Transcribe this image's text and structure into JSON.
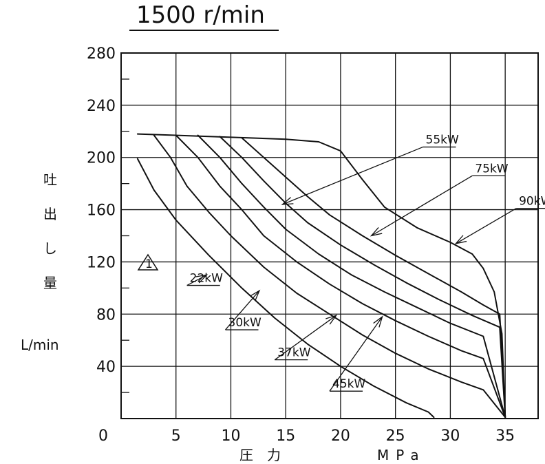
{
  "chart_data": {
    "type": "line",
    "title": "1500 r/min",
    "xlabel": "圧　力",
    "xunit": "MPa",
    "ylabel": "吐出し量",
    "yunit": "L/min",
    "xlim": [
      0,
      38
    ],
    "ylim": [
      0,
      280
    ],
    "grid": true,
    "x_ticks": [
      0,
      5,
      10,
      15,
      20,
      25,
      30,
      35
    ],
    "y_ticks": [
      40,
      80,
      120,
      160,
      200,
      240,
      280
    ],
    "revision_mark": "1",
    "series": [
      {
        "name": "22kW",
        "points": [
          [
            1.5,
            199
          ],
          [
            3,
            175
          ],
          [
            5,
            152
          ],
          [
            8,
            125
          ],
          [
            11,
            100
          ],
          [
            14,
            77
          ],
          [
            17,
            57
          ],
          [
            20,
            40
          ],
          [
            23,
            25
          ],
          [
            26,
            12
          ],
          [
            28,
            5
          ],
          [
            28.5,
            1
          ]
        ]
      },
      {
        "name": "30kW",
        "points": [
          [
            3,
            217
          ],
          [
            4.5,
            200
          ],
          [
            6,
            178
          ],
          [
            8,
            158
          ],
          [
            10,
            140
          ],
          [
            13,
            116
          ],
          [
            16,
            96
          ],
          [
            19,
            80
          ],
          [
            22,
            64
          ],
          [
            25,
            50
          ],
          [
            28,
            38
          ],
          [
            31,
            28
          ],
          [
            33,
            22
          ],
          [
            35,
            1
          ]
        ]
      },
      {
        "name": "37kW",
        "points": [
          [
            5,
            217
          ],
          [
            7,
            200
          ],
          [
            9,
            178
          ],
          [
            11,
            160
          ],
          [
            13,
            140
          ],
          [
            16,
            120
          ],
          [
            19,
            103
          ],
          [
            22,
            88
          ],
          [
            25,
            75
          ],
          [
            28,
            63
          ],
          [
            31,
            52
          ],
          [
            33,
            46
          ],
          [
            35,
            1
          ]
        ]
      },
      {
        "name": "45kW",
        "points": [
          [
            7,
            217
          ],
          [
            9,
            200
          ],
          [
            11,
            180
          ],
          [
            13,
            162
          ],
          [
            15,
            145
          ],
          [
            18,
            126
          ],
          [
            21,
            110
          ],
          [
            24,
            97
          ],
          [
            27,
            85
          ],
          [
            30,
            73
          ],
          [
            33,
            63
          ],
          [
            35,
            1
          ]
        ]
      },
      {
        "name": "55kW",
        "points": [
          [
            9,
            216
          ],
          [
            11,
            200
          ],
          [
            13,
            182
          ],
          [
            15,
            165
          ],
          [
            17,
            150
          ],
          [
            20,
            133
          ],
          [
            23,
            118
          ],
          [
            26,
            104
          ],
          [
            29,
            91
          ],
          [
            32,
            79
          ],
          [
            34.5,
            70
          ],
          [
            35,
            1
          ]
        ]
      },
      {
        "name": "75kW",
        "points": [
          [
            11,
            215
          ],
          [
            13,
            200
          ],
          [
            15,
            185
          ],
          [
            17,
            170
          ],
          [
            19,
            156
          ],
          [
            22,
            140
          ],
          [
            25,
            125
          ],
          [
            28,
            111
          ],
          [
            31,
            97
          ],
          [
            33,
            87
          ],
          [
            34.5,
            80
          ],
          [
            35,
            1
          ]
        ]
      },
      {
        "name": "90kW",
        "points": [
          [
            1.5,
            218
          ],
          [
            15,
            214
          ],
          [
            18,
            212
          ],
          [
            20,
            205
          ],
          [
            22,
            183
          ],
          [
            24,
            162
          ],
          [
            27,
            146
          ],
          [
            30,
            135
          ],
          [
            32,
            126
          ],
          [
            33,
            115
          ],
          [
            34,
            97
          ],
          [
            34.7,
            65
          ],
          [
            35,
            1
          ]
        ]
      }
    ],
    "annotations": [
      {
        "label": "55kW",
        "from": [
          27.5,
          208
        ],
        "to": [
          14.7,
          164
        ]
      },
      {
        "label": "75kW",
        "from": [
          32,
          186
        ],
        "to": [
          22.8,
          140
        ]
      },
      {
        "label": "90kW",
        "from": [
          36,
          161
        ],
        "to": [
          30.5,
          134
        ]
      },
      {
        "label": "22kW",
        "from": [
          6,
          102
        ],
        "to": [
          7.8,
          110
        ]
      },
      {
        "label": "30kW",
        "from": [
          9.5,
          68
        ],
        "to": [
          12.6,
          98
        ]
      },
      {
        "label": "37kW",
        "from": [
          14,
          45
        ],
        "to": [
          19.6,
          79
        ]
      },
      {
        "label": "45kW",
        "from": [
          19,
          21
        ],
        "to": [
          23.8,
          78
        ]
      }
    ]
  }
}
